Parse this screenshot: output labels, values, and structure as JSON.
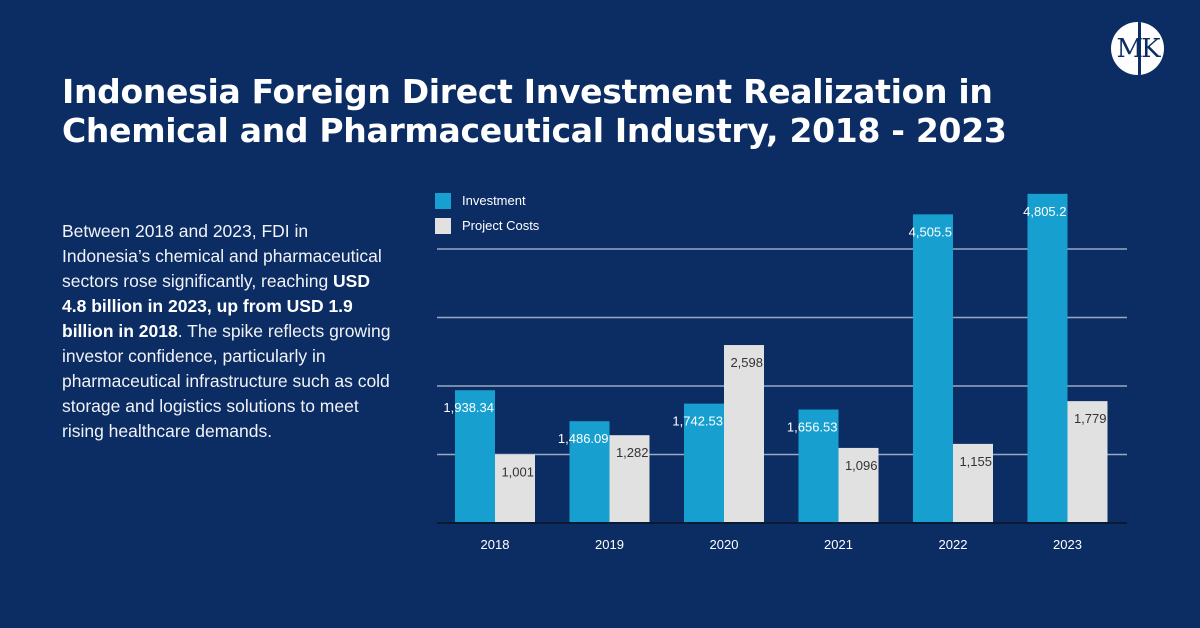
{
  "title": "Indonesia Foreign Direct Investment Realization in Chemical and Pharmaceutical Industry, 2018 - 2023",
  "logo": {
    "text": "MK"
  },
  "description": {
    "part1": "Between 2018 and 2023, FDI in Indonesia’s chemical and pharmaceutical sectors rose significantly, reaching ",
    "bold": "USD 4.8 billion in 2023, up from USD 1.9 billion in 2018",
    "part2": ". The spike reflects growing investor confidence, particularly in pharmaceutical infrastructure such as cold storage and logistics solutions to meet rising healthcare demands."
  },
  "colors": {
    "investment": "#17a0cf",
    "project_costs": "#e1e1e1",
    "background": "#0c2d64"
  },
  "chart_data": {
    "type": "bar",
    "title": "",
    "xlabel": "",
    "ylabel": "",
    "categories": [
      "2018",
      "2019",
      "2020",
      "2021",
      "2022",
      "2023"
    ],
    "series": [
      {
        "name": "Investment",
        "values": [
          1938.34,
          1486.09,
          1742.53,
          1656.53,
          4505.5,
          4805.2
        ],
        "labels": [
          "1,938.34",
          "1,486.09",
          "1,742.53",
          "1,656.53",
          "4,505.5",
          "4,805.2"
        ]
      },
      {
        "name": "Project Costs",
        "values": [
          1001,
          1282,
          2598,
          1096,
          1155,
          1779
        ],
        "labels": [
          "1,001",
          "1,282",
          "2,598",
          "1,096",
          "1,155",
          "1,779"
        ]
      }
    ],
    "ylim": [
      0,
      5000
    ],
    "gridlines": [
      1000,
      2000,
      3000,
      4000
    ],
    "grid": true,
    "legend": "top-left"
  }
}
